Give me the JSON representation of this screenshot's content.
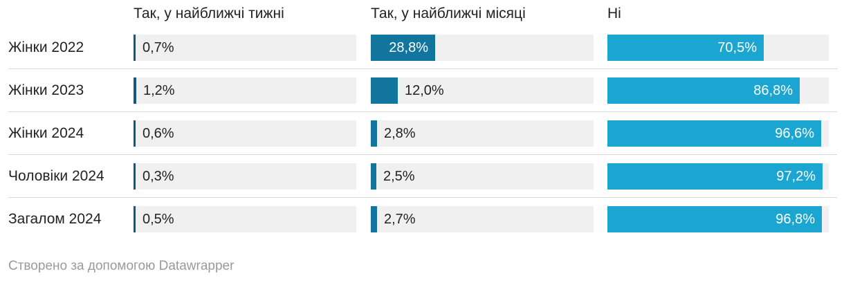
{
  "chart_data": {
    "type": "bar",
    "categories": [
      "Жінки 2022",
      "Жінки 2023",
      "Жінки 2024",
      "Чоловіки 2024",
      "Загалом 2024"
    ],
    "series": [
      {
        "name": "Так, у найближчі тижні",
        "values": [
          0.7,
          1.2,
          0.6,
          0.3,
          0.5
        ],
        "labels": [
          "0,7%",
          "1,2%",
          "0,6%",
          "0,3%",
          "0,5%"
        ],
        "color": "#0f5a7e"
      },
      {
        "name": "Так, у найближчі місяці",
        "values": [
          28.8,
          12.0,
          2.8,
          2.5,
          2.7
        ],
        "labels": [
          "28,8%",
          "12,0%",
          "2,8%",
          "2,5%",
          "2,7%"
        ],
        "color": "#12759e"
      },
      {
        "name": "Ні",
        "values": [
          70.5,
          86.8,
          96.6,
          97.2,
          96.8
        ],
        "labels": [
          "70,5%",
          "86,8%",
          "96,6%",
          "97,2%",
          "96,8%"
        ],
        "color": "#1ba6d2"
      }
    ],
    "xlim": [
      0,
      100
    ],
    "track_color": "#f0f0f0",
    "legend": "column headers"
  },
  "footer": {
    "credit": "Створено за допомогою Datawrapper"
  }
}
